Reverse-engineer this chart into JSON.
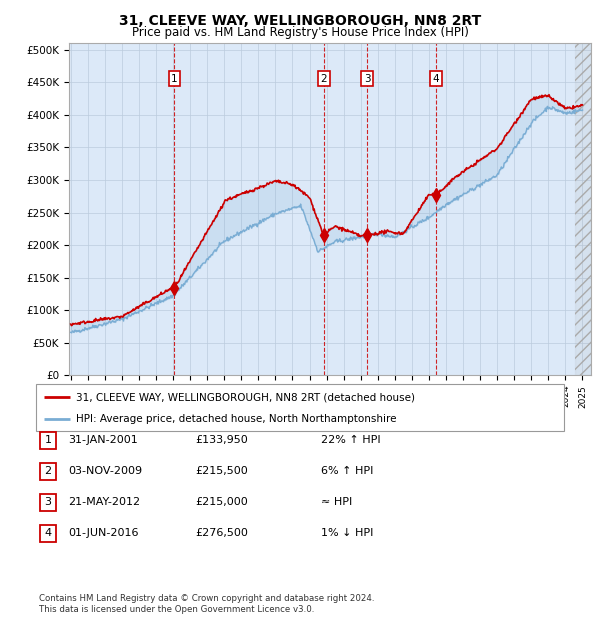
{
  "title": "31, CLEEVE WAY, WELLINGBOROUGH, NN8 2RT",
  "subtitle": "Price paid vs. HM Land Registry's House Price Index (HPI)",
  "ylabel_ticks": [
    "£0",
    "£50K",
    "£100K",
    "£150K",
    "£200K",
    "£250K",
    "£300K",
    "£350K",
    "£400K",
    "£450K",
    "£500K"
  ],
  "ytick_values": [
    0,
    50000,
    100000,
    150000,
    200000,
    250000,
    300000,
    350000,
    400000,
    450000,
    500000
  ],
  "ylim": [
    0,
    510000
  ],
  "xlim_start": 1994.9,
  "xlim_end": 2025.5,
  "hpi_color": "#7aadd4",
  "price_color": "#cc0000",
  "transactions": [
    {
      "num": 1,
      "date": "31-JAN-2001",
      "price": 133950,
      "year": 2001.08
    },
    {
      "num": 2,
      "date": "03-NOV-2009",
      "price": 215500,
      "year": 2009.83
    },
    {
      "num": 3,
      "date": "21-MAY-2012",
      "price": 215000,
      "year": 2012.38
    },
    {
      "num": 4,
      "date": "01-JUN-2016",
      "price": 276500,
      "year": 2016.42
    }
  ],
  "legend_line1": "31, CLEEVE WAY, WELLINGBOROUGH, NN8 2RT (detached house)",
  "legend_line2": "HPI: Average price, detached house, North Northamptonshire",
  "footer1": "Contains HM Land Registry data © Crown copyright and database right 2024.",
  "footer2": "This data is licensed under the Open Government Licence v3.0.",
  "table_rows": [
    [
      "1",
      "31-JAN-2001",
      "£133,950",
      "22% ↑ HPI"
    ],
    [
      "2",
      "03-NOV-2009",
      "£215,500",
      "6% ↑ HPI"
    ],
    [
      "3",
      "21-MAY-2012",
      "£215,000",
      "≈ HPI"
    ],
    [
      "4",
      "01-JUN-2016",
      "£276,500",
      "1% ↓ HPI"
    ]
  ]
}
